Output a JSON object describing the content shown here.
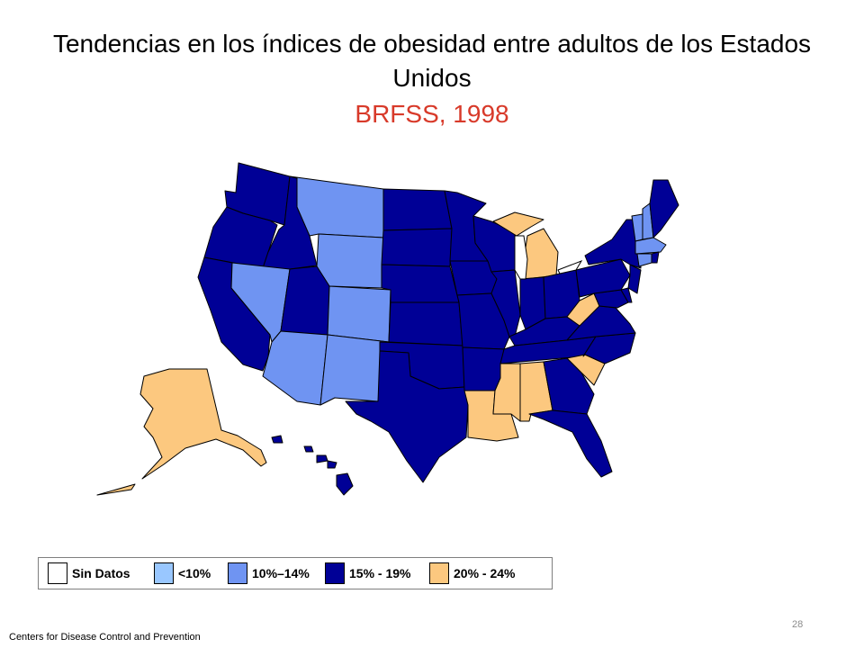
{
  "title": "Tendencias en los índices de obesidad entre adultos de los Estados Unidos",
  "subtitle": "BRFSS, 1998",
  "colors": {
    "subtitle": "#d83a2a",
    "no_data": "#ffffff",
    "lt10": "#99c7ff",
    "r10_14": "#6f94f2",
    "r15_19": "#000096",
    "r20_24": "#fcc87f",
    "lakes": "#ffffff"
  },
  "legend": [
    {
      "label": "Sin Datos",
      "category": "no_data"
    },
    {
      "label": "<10%",
      "category": "lt10"
    },
    {
      "label": "10%–14%",
      "category": "r10_14"
    },
    {
      "label": "15% - 19%",
      "category": "r15_19"
    },
    {
      "label": "20% - 24%",
      "category": "r20_24"
    }
  ],
  "states": {
    "WA": "r15_19",
    "OR": "r15_19",
    "CA": "r15_19",
    "ID": "r15_19",
    "NV": "r10_14",
    "MT": "r10_14",
    "WY": "r10_14",
    "UT": "r15_19",
    "CO": "r10_14",
    "AZ": "r10_14",
    "NM": "r10_14",
    "ND": "r15_19",
    "SD": "r15_19",
    "NE": "r15_19",
    "KS": "r15_19",
    "OK": "r15_19",
    "TX": "r15_19",
    "MN": "r15_19",
    "IA": "r15_19",
    "MO": "r15_19",
    "AR": "r15_19",
    "LA": "r20_24",
    "WI": "r15_19",
    "IL": "r15_19",
    "MI": "r20_24",
    "IN": "r15_19",
    "OH": "r15_19",
    "KY": "r15_19",
    "TN": "r15_19",
    "MS": "r20_24",
    "AL": "r20_24",
    "GA": "r15_19",
    "FL": "r15_19",
    "SC": "r20_24",
    "NC": "r15_19",
    "VA": "r15_19",
    "WV": "r20_24",
    "MD": "r15_19",
    "DE": "r15_19",
    "NJ": "r15_19",
    "PA": "r15_19",
    "NY": "r15_19",
    "VT": "r10_14",
    "NH": "r10_14",
    "ME": "r15_19",
    "MA": "r10_14",
    "CT": "r10_14",
    "RI": "r15_19",
    "AK": "r20_24",
    "HI": "r15_19"
  },
  "footer": "Centers for Disease Control and Prevention",
  "page_number": "28"
}
